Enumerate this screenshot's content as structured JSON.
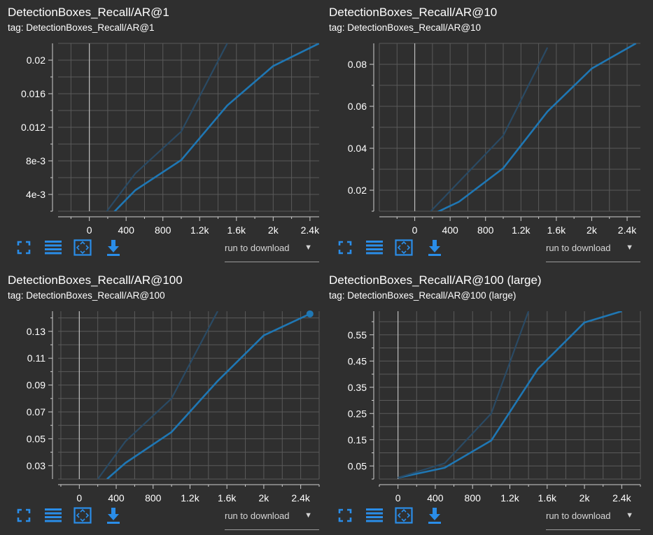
{
  "colors": {
    "background": "#2f2f2f",
    "grid": "#5a5a5a",
    "line": "#1f77b4",
    "line_faint": "#2a4a64",
    "icon": "#2a8de8",
    "text": "#ffffff"
  },
  "toolbar": {
    "icons": [
      "fullscreen-icon",
      "toggle-log-scale-icon",
      "fit-domain-icon",
      "download-icon"
    ],
    "run_select_label": "run to download",
    "run_select_arrow": "▼"
  },
  "cards": [
    {
      "title": "DetectionBoxes_Recall/AR@1",
      "tag": "tag: DetectionBoxes_Recall/AR@1"
    },
    {
      "title": "DetectionBoxes_Recall/AR@10",
      "tag": "tag: DetectionBoxes_Recall/AR@10"
    },
    {
      "title": "DetectionBoxes_Recall/AR@100",
      "tag": "tag: DetectionBoxes_Recall/AR@100"
    },
    {
      "title": "DetectionBoxes_Recall/AR@100 (large)",
      "tag": "tag: DetectionBoxes_Recall/AR@100 (large)"
    }
  ],
  "chart_data": [
    {
      "type": "line",
      "title": "DetectionBoxes_Recall/AR@1",
      "x_ticks": [
        0,
        400,
        800,
        1200,
        1600,
        2000,
        2400
      ],
      "x_tick_labels": [
        "0",
        "400",
        "800",
        "1.2k",
        "1.6k",
        "2k",
        "2.4k"
      ],
      "y_ticks": [
        0.004,
        0.008,
        0.012,
        0.016,
        0.02
      ],
      "y_tick_labels": [
        "4e-3",
        "8e-3",
        "0.012",
        "0.016",
        "0.02"
      ],
      "xlim": [
        -340,
        2500
      ],
      "ylim": [
        0.002,
        0.022
      ],
      "series": [
        {
          "style": "smoothed",
          "x": [
            250,
            500,
            1000,
            1500,
            2000,
            2500
          ],
          "y": [
            0.0017,
            0.0045,
            0.0081,
            0.0146,
            0.0193,
            0.022
          ]
        },
        {
          "style": "raw",
          "x": [
            170,
            500,
            1000,
            1500
          ],
          "y": [
            0.0017,
            0.0065,
            0.0115,
            0.022
          ]
        }
      ]
    },
    {
      "type": "line",
      "title": "DetectionBoxes_Recall/AR@10",
      "x_ticks": [
        0,
        400,
        800,
        1200,
        1600,
        2000,
        2400
      ],
      "x_tick_labels": [
        "0",
        "400",
        "800",
        "1.2k",
        "1.6k",
        "2k",
        "2.4k"
      ],
      "y_ticks": [
        0.02,
        0.04,
        0.06,
        0.08
      ],
      "y_tick_labels": [
        "0.02",
        "0.04",
        "0.06",
        "0.08"
      ],
      "xlim": [
        -400,
        2550
      ],
      "ylim": [
        0.01,
        0.09
      ],
      "series": [
        {
          "style": "smoothed",
          "x": [
            250,
            500,
            1000,
            1500,
            2000,
            2500
          ],
          "y": [
            0.0095,
            0.0145,
            0.0305,
            0.0575,
            0.078,
            0.09
          ]
        },
        {
          "style": "raw",
          "x": [
            170,
            500,
            1000,
            1500
          ],
          "y": [
            0.0095,
            0.024,
            0.046,
            0.088
          ]
        }
      ]
    },
    {
      "type": "line",
      "title": "DetectionBoxes_Recall/AR@100",
      "x_ticks": [
        0,
        400,
        800,
        1200,
        1600,
        2000,
        2400
      ],
      "x_tick_labels": [
        "0",
        "400",
        "800",
        "1.2k",
        "1.6k",
        "2k",
        "2.4k"
      ],
      "y_ticks": [
        0.03,
        0.05,
        0.07,
        0.09,
        0.11,
        0.13
      ],
      "y_tick_labels": [
        "0.03",
        "0.05",
        "0.07",
        "0.09",
        "0.11",
        "0.13"
      ],
      "xlim": [
        -230,
        2600
      ],
      "ylim": [
        0.02,
        0.145
      ],
      "series": [
        {
          "style": "smoothed",
          "x": [
            300,
            500,
            1000,
            1500,
            2000,
            2500
          ],
          "y": [
            0.02,
            0.032,
            0.055,
            0.093,
            0.127,
            0.143
          ]
        },
        {
          "style": "raw",
          "x": [
            200,
            500,
            1000,
            1500
          ],
          "y": [
            0.02,
            0.048,
            0.08,
            0.145
          ]
        }
      ]
    },
    {
      "type": "line",
      "title": "DetectionBoxes_Recall/AR@100 (large)",
      "x_ticks": [
        0,
        400,
        800,
        1200,
        1600,
        2000,
        2400
      ],
      "x_tick_labels": [
        "0",
        "400",
        "800",
        "1.2k",
        "1.6k",
        "2k",
        "2.4k"
      ],
      "y_ticks": [
        0.05,
        0.15,
        0.25,
        0.35,
        0.45,
        0.55
      ],
      "y_tick_labels": [
        "0.05",
        "0.15",
        "0.25",
        "0.35",
        "0.45",
        "0.55"
      ],
      "xlim": [
        -200,
        2600
      ],
      "ylim": [
        0,
        0.64
      ],
      "series": [
        {
          "style": "smoothed",
          "x": [
            0,
            500,
            1000,
            1500,
            2000,
            2400
          ],
          "y": [
            0.005,
            0.043,
            0.147,
            0.42,
            0.597,
            0.64
          ]
        },
        {
          "style": "raw",
          "x": [
            0,
            500,
            1000,
            1400
          ],
          "y": [
            0.005,
            0.06,
            0.25,
            0.64
          ]
        }
      ]
    }
  ]
}
